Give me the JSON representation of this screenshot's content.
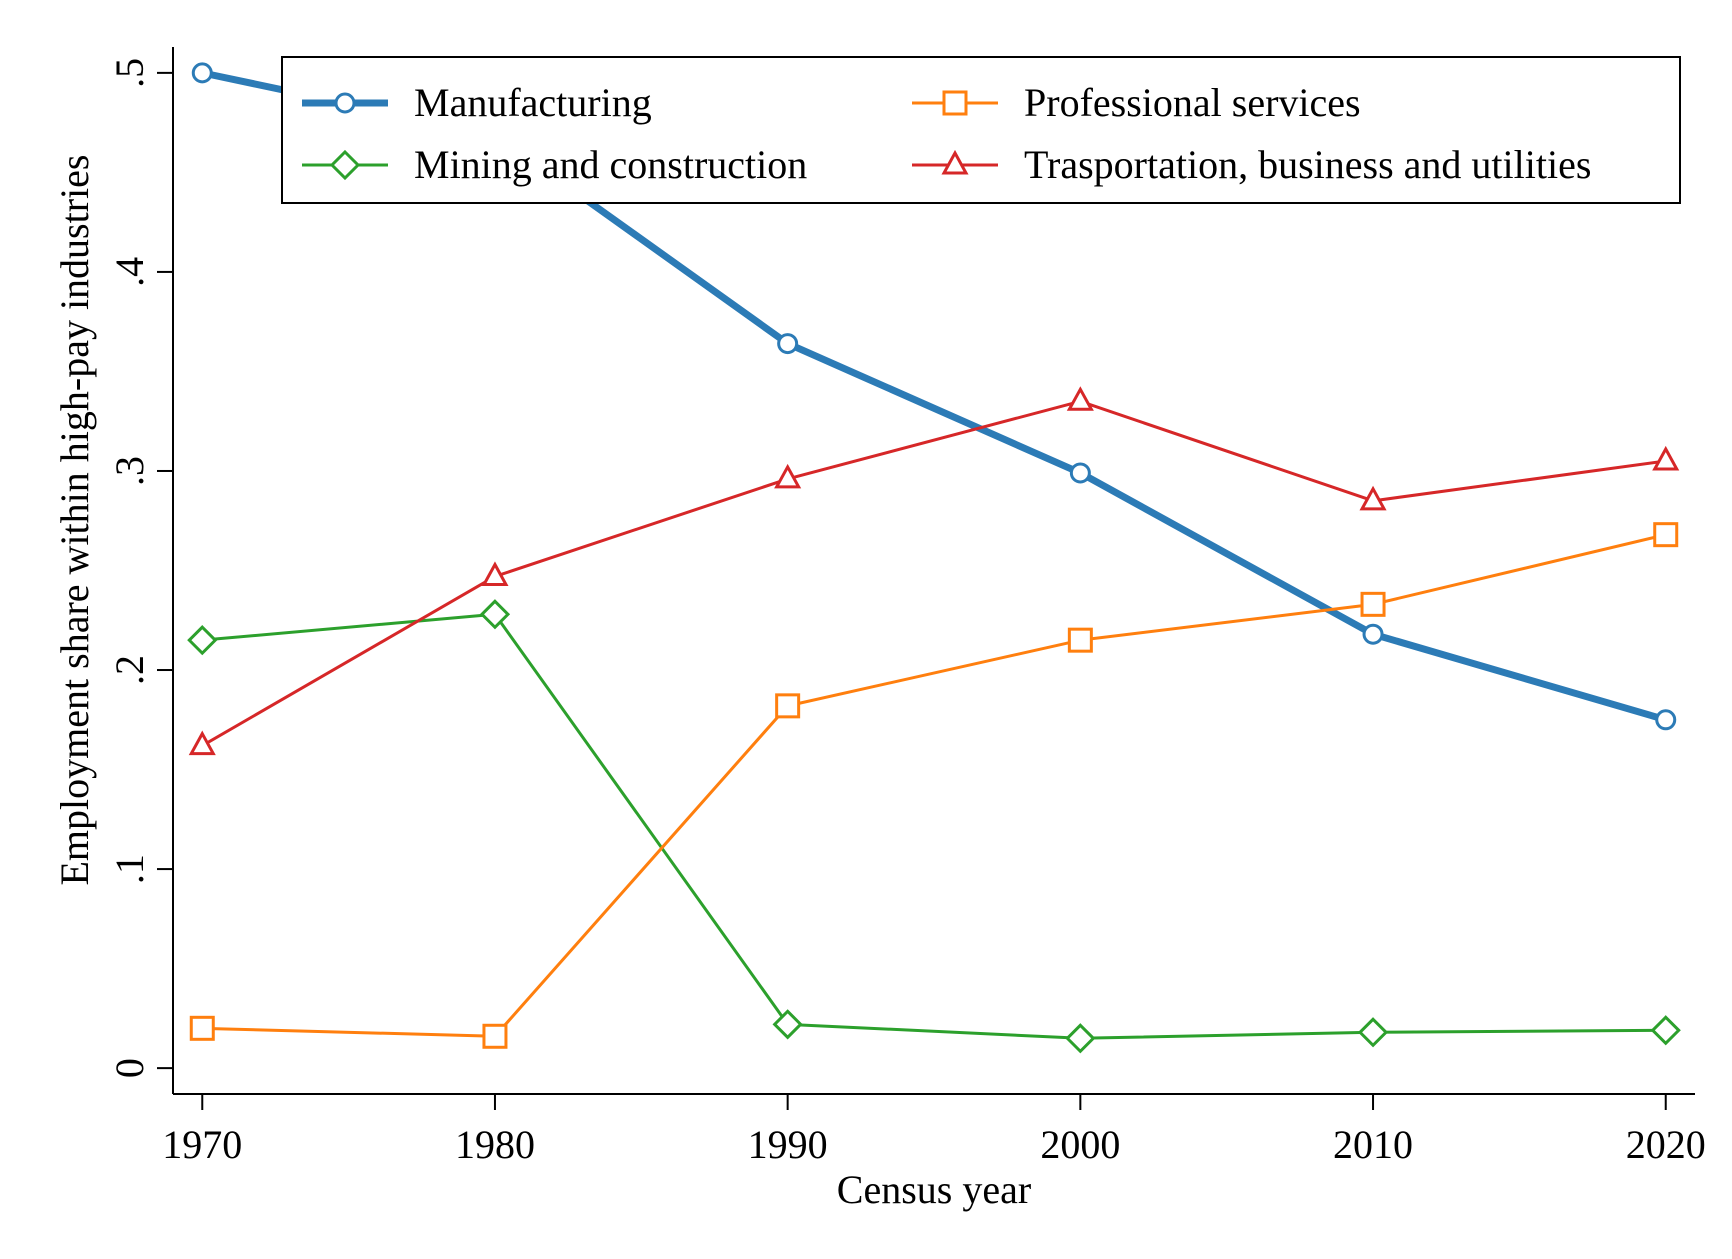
{
  "chart_data": {
    "type": "line",
    "title": "",
    "xlabel": "Census year",
    "ylabel": "Employment share within high-pay industries",
    "x": [
      1970,
      1980,
      1990,
      2000,
      2010,
      2020
    ],
    "xlim": [
      1969,
      2021
    ],
    "ylim": [
      -0.013,
      0.513
    ],
    "x_ticks": [
      1970,
      1980,
      1990,
      2000,
      2010,
      2020
    ],
    "x_tick_labels": [
      "1970",
      "1980",
      "1990",
      "2000",
      "2010",
      "2020"
    ],
    "y_ticks": [
      0,
      0.1,
      0.2,
      0.3,
      0.4,
      0.5
    ],
    "y_tick_labels": [
      "0",
      ".1",
      ".2",
      ".3",
      ".4",
      ".5"
    ],
    "grid": false,
    "legend_position": "top-right",
    "series": [
      {
        "name": "Manufacturing",
        "values": [
          0.5,
          0.469,
          0.364,
          0.299,
          0.218,
          0.175
        ],
        "color": "#2c7bb6",
        "marker": "circle",
        "width": "thick"
      },
      {
        "name": "Mining and construction",
        "values": [
          0.215,
          0.228,
          0.022,
          0.015,
          0.018,
          0.019
        ],
        "color": "#2ca02c",
        "marker": "diamond",
        "width": "thin"
      },
      {
        "name": "Professional services",
        "values": [
          0.02,
          0.016,
          0.182,
          0.215,
          0.233,
          0.268
        ],
        "color": "#ff7f0e",
        "marker": "square",
        "width": "thin"
      },
      {
        "name": "Trasportation, business and utilities",
        "values": [
          0.162,
          0.247,
          0.296,
          0.335,
          0.285,
          0.305
        ],
        "color": "#d62728",
        "marker": "triangle",
        "width": "thin"
      }
    ]
  }
}
